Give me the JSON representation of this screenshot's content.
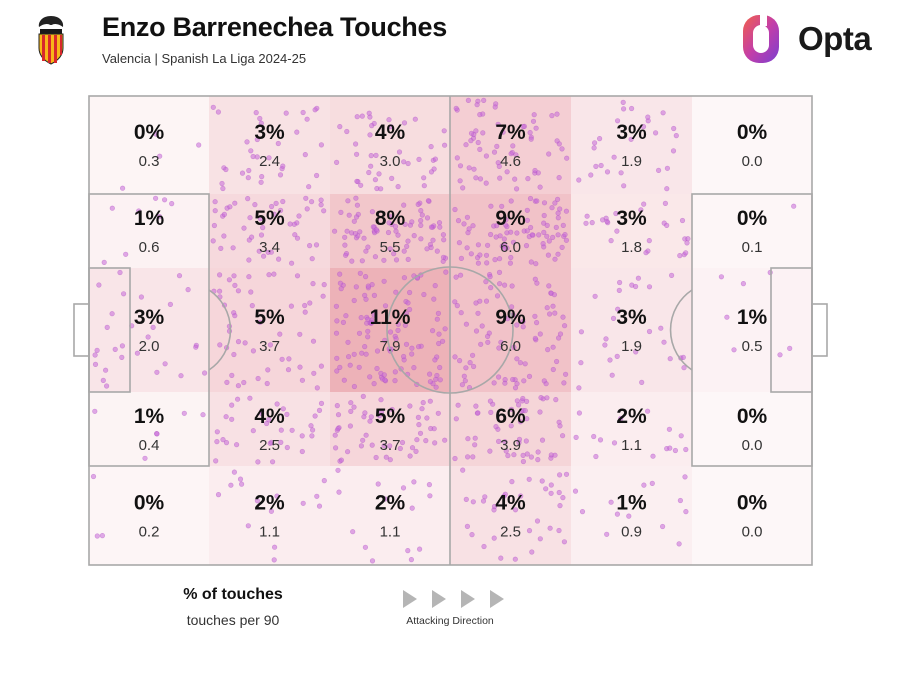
{
  "header": {
    "title": "Enzo Barrenechea Touches",
    "subtitle": "Valencia | Spanish La Liga 2024-25",
    "brand": "Opta"
  },
  "legend": {
    "primary": "% of touches",
    "secondary": "touches per 90",
    "direction": "Attacking Direction"
  },
  "colors": {
    "zone_base": "#e07a85",
    "dot": "#c768d9",
    "pitch_line": "#a8a8a8",
    "brand_gradient": [
      "#f2604a",
      "#c33ea8",
      "#7b3fd0"
    ]
  },
  "chart_data": {
    "type": "heatmap",
    "title": "Enzo Barrenechea Touches",
    "subtitle": "Valencia | Spanish La Liga 2024-25",
    "attacking_direction": "left-to-right",
    "columns": 6,
    "rows": 5,
    "percent": [
      [
        "0%",
        "3%",
        "4%",
        "7%",
        "3%",
        "0%"
      ],
      [
        "1%",
        "5%",
        "8%",
        "9%",
        "3%",
        "0%"
      ],
      [
        "3%",
        "5%",
        "11%",
        "9%",
        "3%",
        "1%"
      ],
      [
        "1%",
        "4%",
        "5%",
        "6%",
        "2%",
        "0%"
      ],
      [
        "0%",
        "2%",
        "2%",
        "4%",
        "1%",
        "0%"
      ]
    ],
    "per90": [
      [
        "0.3",
        "2.4",
        "3.0",
        "4.6",
        "1.9",
        "0.0"
      ],
      [
        "0.6",
        "3.4",
        "5.5",
        "6.0",
        "1.8",
        "0.1"
      ],
      [
        "2.0",
        "3.7",
        "7.9",
        "6.0",
        "1.9",
        "0.5"
      ],
      [
        "0.4",
        "2.5",
        "3.7",
        "3.9",
        "1.1",
        "0.0"
      ],
      [
        "0.2",
        "1.1",
        "1.1",
        "2.5",
        "0.9",
        "0.0"
      ]
    ]
  }
}
